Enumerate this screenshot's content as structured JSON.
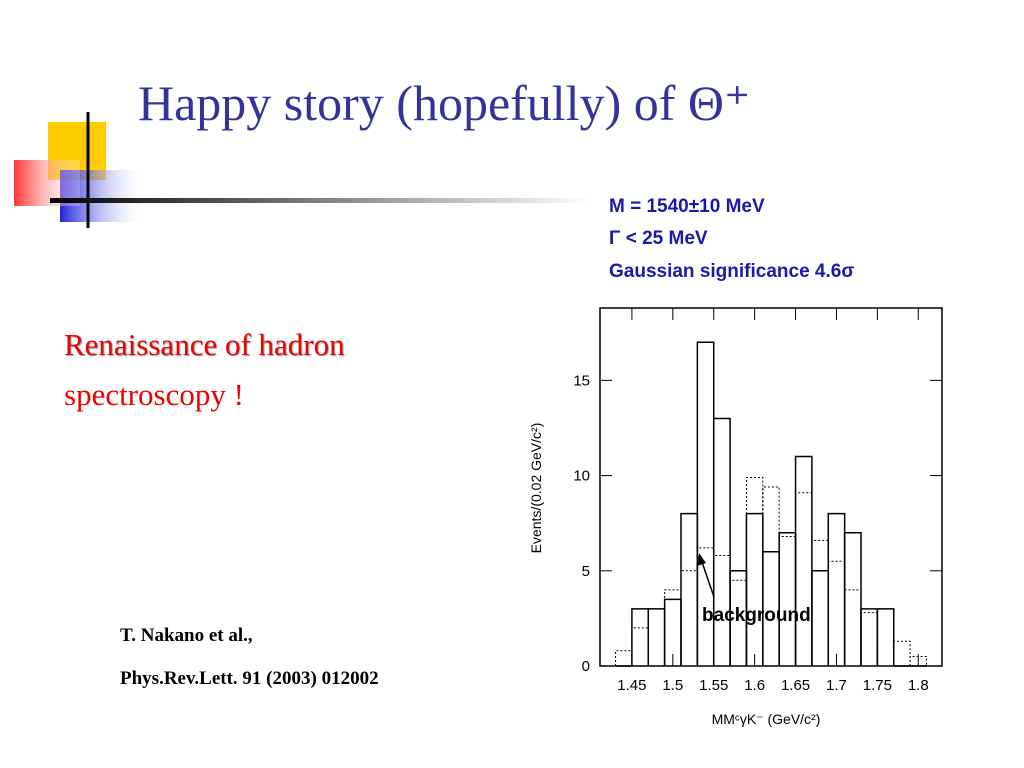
{
  "header": {
    "title": "Happy story (hopefully) of  Θ⁺"
  },
  "body": {
    "headline": [
      "Renaissance of hadron",
      "spectroscopy !"
    ],
    "reference": [
      "T. Nakano et al.,",
      "Phys.Rev.Lett. 91 (2003) 012002"
    ]
  },
  "chart_data": {
    "type": "histogram",
    "annotations": [
      "M = 1540±10 MeV",
      "Γ < 25 MeV",
      "Gaussian significance 4.6σ"
    ],
    "arrow_label": "background",
    "x_label": "MMᶜγK⁻ (GeV/c²)",
    "y_label": "Events/(0.02 GeV/c²)",
    "bins": [
      1.43,
      1.45,
      1.47,
      1.49,
      1.51,
      1.53,
      1.55,
      1.57,
      1.59,
      1.61,
      1.63,
      1.65,
      1.67,
      1.69,
      1.71,
      1.73,
      1.75,
      1.77,
      1.79,
      1.81
    ],
    "series": [
      {
        "color": "#000000",
        "dashed": false,
        "values": [
          0,
          3,
          3,
          3.5,
          8,
          17,
          13,
          5,
          8,
          6,
          7,
          11,
          5,
          8,
          7,
          3,
          3,
          0,
          0
        ]
      },
      {
        "color": "#000000",
        "dashed": true,
        "values": [
          0.8,
          2,
          3,
          4,
          5,
          6.2,
          5.8,
          4.5,
          9.9,
          9.4,
          6.8,
          9.1,
          6.6,
          5.5,
          4,
          2.8,
          3,
          1.3,
          0.5
        ]
      }
    ],
    "xlim": [
      1.411,
      1.829
    ],
    "xticks": [
      1.45,
      1.5,
      1.55,
      1.6,
      1.65,
      1.7,
      1.75,
      1.8
    ],
    "ylim": [
      0,
      18.8
    ],
    "yticks": [
      0,
      5,
      10,
      15
    ]
  }
}
